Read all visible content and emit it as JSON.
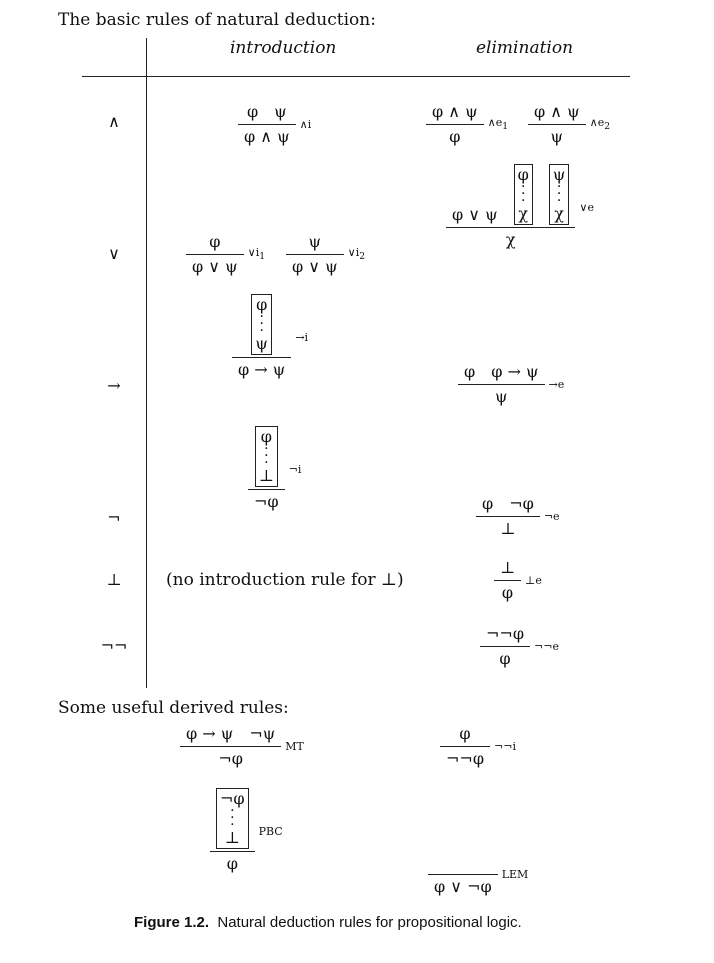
{
  "heading": "The basic rules of natural deduction:",
  "columns": {
    "intro": "introduction",
    "elim": "elimination"
  },
  "connectives": {
    "and": "∧",
    "or": "∨",
    "imp": "→",
    "neg": "¬",
    "bot": "⊥",
    "negneg": "¬¬"
  },
  "rules": {
    "and_i": {
      "p1": "φ",
      "p2": "ψ",
      "concl": "φ ∧ ψ",
      "label": "∧i"
    },
    "and_e1": {
      "p1": "φ ∧ ψ",
      "concl": "φ",
      "label": "∧e",
      "sub": "1"
    },
    "and_e2": {
      "p1": "φ ∧ ψ",
      "concl": "ψ",
      "label": "∧e",
      "sub": "2"
    },
    "or_i1": {
      "p1": "φ",
      "concl": "φ ∨ ψ",
      "label": "∨i",
      "sub": "1"
    },
    "or_i2": {
      "p1": "ψ",
      "concl": "φ ∨ ψ",
      "label": "∨i",
      "sub": "2"
    },
    "or_e": {
      "p1": "φ ∨ ψ",
      "box1_top": "φ",
      "box1_bottom": "χ",
      "box2_top": "ψ",
      "box2_bottom": "χ",
      "concl": "χ",
      "label": "∨e"
    },
    "imp_i": {
      "box_top": "φ",
      "box_bottom": "ψ",
      "concl": "φ → ψ",
      "label": "→i"
    },
    "imp_e": {
      "p1": "φ",
      "p2": "φ → ψ",
      "concl": "ψ",
      "label": "→e"
    },
    "neg_i": {
      "box_top": "φ",
      "box_bottom": "⊥",
      "concl": "¬φ",
      "label": "¬i"
    },
    "neg_e": {
      "p1": "φ",
      "p2": "¬φ",
      "concl": "⊥",
      "label": "¬e"
    },
    "bot_intro_note": "(no introduction rule for ⊥)",
    "bot_e": {
      "p1": "⊥",
      "concl": "φ",
      "label": "⊥e"
    },
    "negneg_e": {
      "p1": "¬¬φ",
      "concl": "φ",
      "label": "¬¬e"
    }
  },
  "derived_heading": "Some useful derived rules:",
  "derived": {
    "mt": {
      "p1": "φ → ψ",
      "p2": "¬ψ",
      "concl": "¬φ",
      "label": "MT"
    },
    "negneg_i": {
      "p1": "φ",
      "concl": "¬¬φ",
      "label": "¬¬i"
    },
    "pbc": {
      "box_top": "¬φ",
      "box_bottom": "⊥",
      "concl": "φ",
      "label": "PBC"
    },
    "lem": {
      "p1": "",
      "concl": "φ ∨ ¬φ",
      "label": "LEM"
    }
  },
  "caption": {
    "figure": "Figure 1.2.",
    "text": "Natural deduction rules for propositional logic."
  }
}
